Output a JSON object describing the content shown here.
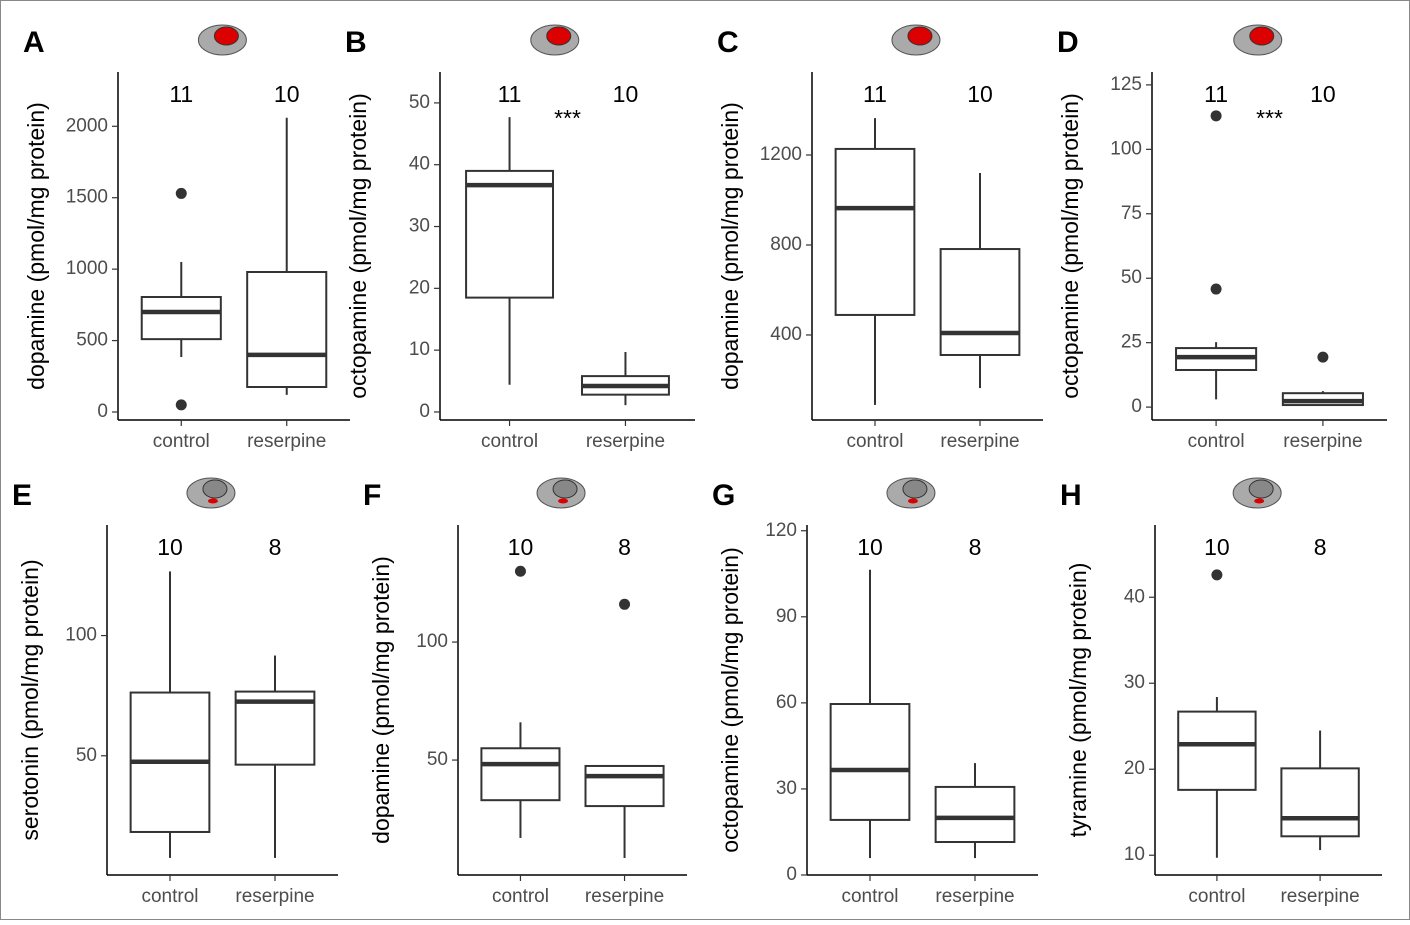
{
  "chart_data": [
    {
      "type": "box",
      "panel": "A",
      "ylabel": "dopamine (pmol/mg protein)",
      "categories": [
        "control",
        "reserpine"
      ],
      "n": [
        11,
        10
      ],
      "ylim": [
        -56,
        2380
      ],
      "yticks": [
        0,
        500,
        1000,
        1500,
        2000
      ],
      "boxes": [
        {
          "whisker_low": 385,
          "q1": 510,
          "median": 700,
          "q3": 805,
          "whisker_high": 1050,
          "outliers": [
            1530,
            50
          ]
        },
        {
          "whisker_low": 120,
          "q1": 175,
          "median": 400,
          "q3": 980,
          "whisker_high": 2060,
          "outliers": []
        }
      ]
    },
    {
      "type": "box",
      "panel": "B",
      "ylabel": "octopamine (pmol/mg protein)",
      "categories": [
        "control",
        "reserpine"
      ],
      "n": [
        11,
        10
      ],
      "annotation": "***",
      "ylim": [
        -1.3,
        55
      ],
      "yticks": [
        0,
        10,
        20,
        30,
        40,
        50
      ],
      "boxes": [
        {
          "whisker_low": 4.4,
          "q1": 18.5,
          "median": 36.7,
          "q3": 39,
          "whisker_high": 47.7,
          "outliers": []
        },
        {
          "whisker_low": 1.1,
          "q1": 2.8,
          "median": 4.2,
          "q3": 5.8,
          "whisker_high": 9.7,
          "outliers": []
        }
      ]
    },
    {
      "type": "box",
      "panel": "C",
      "ylabel": "dopamine (pmol/mg protein)",
      "categories": [
        "control",
        "reserpine"
      ],
      "n": [
        11,
        10
      ],
      "ylim": [
        22,
        1569
      ],
      "yticks": [
        400,
        800,
        1200
      ],
      "boxes": [
        {
          "whisker_low": 89,
          "q1": 489,
          "median": 964,
          "q3": 1227,
          "whisker_high": 1364,
          "outliers": []
        },
        {
          "whisker_low": 164,
          "q1": 311,
          "median": 409,
          "q3": 782,
          "whisker_high": 1120,
          "outliers": []
        }
      ]
    },
    {
      "type": "box",
      "panel": "D",
      "ylabel": "octopamine (pmol/mg protein)",
      "categories": [
        "control",
        "reserpine"
      ],
      "n": [
        11,
        10
      ],
      "annotation": "***",
      "ylim": [
        -5,
        130
      ],
      "yticks": [
        0,
        25,
        50,
        75,
        100,
        125
      ],
      "boxes": [
        {
          "whisker_low": 3,
          "q1": 14.4,
          "median": 19.4,
          "q3": 22.9,
          "whisker_high": 25.2,
          "outliers": [
            45.8,
            113
          ]
        },
        {
          "whisker_low": 0.8,
          "q1": 0.8,
          "median": 2.3,
          "q3": 5.4,
          "whisker_high": 6.2,
          "outliers": [
            19.4
          ]
        }
      ]
    },
    {
      "type": "box",
      "panel": "E",
      "ylabel": "serotonin (pmol/mg protein)",
      "categories": [
        "control",
        "reserpine"
      ],
      "n": [
        10,
        8
      ],
      "ylim": [
        0.4,
        146
      ],
      "yticks": [
        50,
        100
      ],
      "boxes": [
        {
          "whisker_low": 7.5,
          "q1": 18.3,
          "median": 47.5,
          "q3": 76.3,
          "whisker_high": 126.7,
          "outliers": []
        },
        {
          "whisker_low": 7.5,
          "q1": 46.3,
          "median": 72.5,
          "q3": 76.7,
          "whisker_high": 91.7,
          "outliers": []
        }
      ]
    },
    {
      "type": "box",
      "panel": "F",
      "ylabel": "dopamine (pmol/mg protein)",
      "categories": [
        "control",
        "reserpine"
      ],
      "n": [
        10,
        8
      ],
      "ylim": [
        1.3,
        149.6
      ],
      "yticks": [
        50,
        100
      ],
      "boxes": [
        {
          "whisker_low": 17,
          "q1": 33,
          "median": 48.3,
          "q3": 55,
          "whisker_high": 66,
          "outliers": [
            130
          ]
        },
        {
          "whisker_low": 8.5,
          "q1": 30.5,
          "median": 43.2,
          "q3": 47.5,
          "whisker_high": 47.5,
          "outliers": [
            116
          ]
        }
      ]
    },
    {
      "type": "box",
      "panel": "G",
      "ylabel": "octopamine (pmol/mg protein)",
      "categories": [
        "control",
        "reserpine"
      ],
      "n": [
        10,
        8
      ],
      "ylim": [
        0,
        122
      ],
      "yticks": [
        0,
        30,
        60,
        90,
        120
      ],
      "boxes": [
        {
          "whisker_low": 5.9,
          "q1": 19.2,
          "median": 36.6,
          "q3": 59.6,
          "whisker_high": 106.4,
          "outliers": []
        },
        {
          "whisker_low": 5.9,
          "q1": 11.5,
          "median": 19.9,
          "q3": 30.7,
          "whisker_high": 39,
          "outliers": []
        }
      ]
    },
    {
      "type": "box",
      "panel": "H",
      "ylabel": "tyramine (pmol/mg protein)",
      "categories": [
        "control",
        "reserpine"
      ],
      "n": [
        10,
        8
      ],
      "ylim": [
        7.7,
        48.4
      ],
      "yticks": [
        10,
        20,
        30,
        40
      ],
      "boxes": [
        {
          "whisker_low": 9.7,
          "q1": 17.6,
          "median": 22.9,
          "q3": 26.7,
          "whisker_high": 28.4,
          "outliers": [
            42.6
          ]
        },
        {
          "whisker_low": 10.6,
          "q1": 12.2,
          "median": 14.3,
          "q3": 20.1,
          "whisker_high": 24.5,
          "outliers": []
        }
      ]
    }
  ]
}
